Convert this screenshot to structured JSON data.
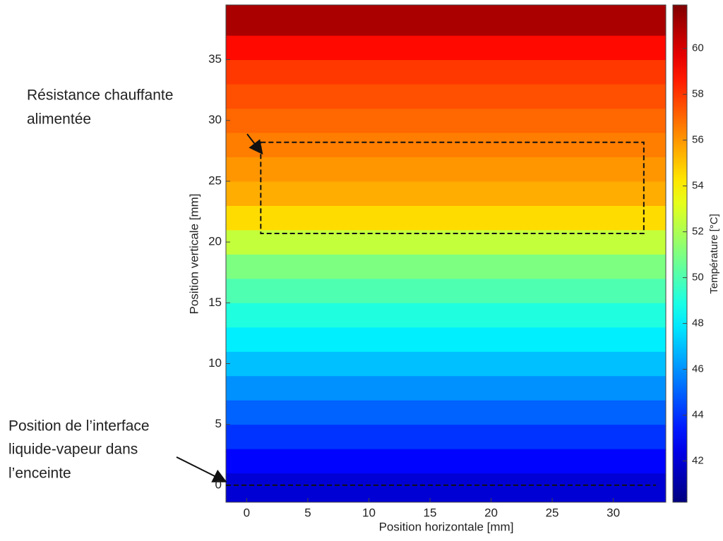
{
  "chart_data": {
    "type": "heatmap",
    "xlabel": "Position horizontale [mm]",
    "ylabel": "Position verticale [mm]",
    "xlim": [
      -1.7,
      34.3
    ],
    "xticks": [
      0,
      5,
      10,
      15,
      20,
      25,
      30
    ],
    "ylim": [
      -1.4,
      39.5
    ],
    "yticks": [
      0,
      5,
      10,
      15,
      20,
      25,
      30,
      35
    ],
    "y": [
      0,
      2,
      4,
      6,
      8,
      10,
      12,
      14,
      16,
      18,
      20,
      22,
      24,
      26,
      28,
      30,
      32,
      34,
      36,
      38
    ],
    "values": [
      42,
      43,
      44,
      45,
      46,
      47,
      48,
      49,
      50,
      51,
      52.5,
      54.5,
      55.5,
      56,
      56.5,
      57,
      57.5,
      58,
      59,
      61
    ],
    "colorbar": {
      "label": "Température [°C]",
      "clim": [
        40.2,
        61.9
      ],
      "ticks": [
        42,
        44,
        46,
        48,
        50,
        52,
        54,
        56,
        58,
        60
      ]
    },
    "annotations": [
      {
        "lines": [
          "Résistance chauffante",
          "alimentée"
        ],
        "box": {
          "x": [
            1.15,
            32.5
          ],
          "y": [
            20.7,
            28.2
          ]
        }
      },
      {
        "lines": [
          "Position de l’interface",
          "liquide-vapeur dans",
          "l’enceinte"
        ],
        "line": {
          "x": [
            -1.7,
            33.5
          ],
          "y": 0
        }
      }
    ]
  }
}
